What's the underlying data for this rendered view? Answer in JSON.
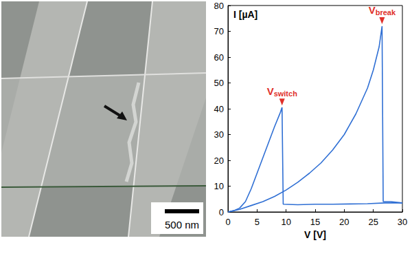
{
  "image": {
    "scale_bar": "500 nm"
  },
  "chart_data": {
    "type": "line",
    "x_label": "V [V]",
    "y_label": "I [µA]",
    "xlim": [
      0,
      30
    ],
    "xticks": [
      0,
      5,
      10,
      15,
      20,
      25,
      30
    ],
    "ylim": [
      0,
      80
    ],
    "yticks": [
      0,
      10,
      20,
      30,
      40,
      50,
      60,
      70,
      80
    ],
    "grid": false,
    "series": [
      {
        "color": "#2f6fd4",
        "x": [
          0,
          1,
          2,
          3,
          4,
          5,
          6,
          7,
          8,
          9,
          9.3,
          9.5,
          12,
          15,
          18,
          21,
          24,
          27,
          30
        ],
        "values": [
          0,
          0.5,
          1.5,
          4,
          9,
          15,
          21,
          27,
          33,
          38.5,
          40.5,
          3,
          2.8,
          3,
          3,
          3.1,
          3.2,
          3.5,
          3.5
        ]
      },
      {
        "color": "#2f6fd4",
        "x": [
          0,
          2,
          4,
          6,
          8,
          10,
          12,
          14,
          16,
          18,
          20,
          22,
          24,
          25,
          26,
          26.5,
          26.7,
          28,
          30
        ],
        "values": [
          0,
          1,
          2.5,
          4,
          6,
          8.5,
          11.5,
          15,
          19,
          24,
          30,
          38,
          48,
          55,
          64,
          72,
          4,
          4,
          3.5
        ]
      }
    ],
    "annotations": [
      {
        "text": "V",
        "subscript": "switch",
        "x": 9.3,
        "y": 40.5,
        "color": "#e0302a"
      },
      {
        "text": "V",
        "subscript": "break",
        "x": 26.5,
        "y": 72,
        "color": "#e0302a"
      }
    ]
  }
}
